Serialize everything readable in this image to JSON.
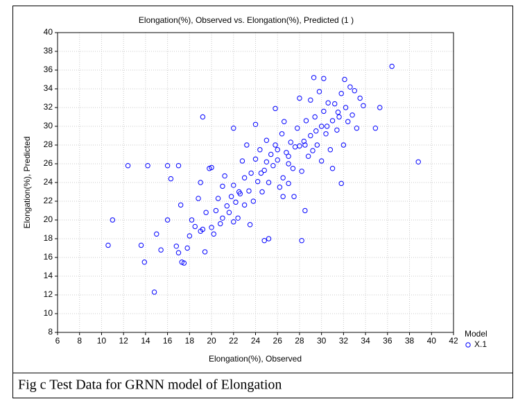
{
  "chart_data": {
    "type": "scatter",
    "title": "Elongation(%), Observed vs.  Elongation(%), Predicted (1 )",
    "xlabel": "Elongation(%), Observed",
    "ylabel": "Elongation(%), Predicted",
    "legend_title": "Model",
    "series": [
      {
        "name": "X.1",
        "color": "#0000ff",
        "x": [
          10.6,
          11.0,
          12.4,
          13.6,
          13.9,
          14.2,
          14.8,
          15.0,
          15.4,
          16.0,
          16.0,
          16.3,
          16.8,
          17.0,
          17.2,
          19.2,
          22.0,
          28.2,
          28.5,
          31.8,
          38.8,
          36.4,
          35.3,
          34.9,
          25.8,
          29.3,
          30.2,
          32.1,
          33.5,
          33.8,
          24.8,
          25.2,
          26.5,
          27.0,
          17.0,
          17.3,
          17.5,
          17.8,
          18.0,
          18.2,
          18.5,
          18.8,
          19.0,
          19.2,
          19.4,
          19.5,
          19.8,
          20.0,
          20.2,
          20.4,
          20.6,
          20.8,
          21.0,
          21.2,
          21.4,
          21.6,
          21.8,
          22.0,
          22.2,
          22.4,
          22.6,
          22.8,
          23.0,
          23.2,
          23.4,
          23.6,
          23.8,
          24.0,
          24.0,
          24.2,
          24.4,
          24.6,
          24.8,
          25.0,
          25.0,
          25.2,
          25.4,
          25.6,
          25.8,
          26.0,
          26.2,
          26.4,
          26.6,
          26.8,
          27.0,
          27.2,
          27.4,
          27.6,
          27.8,
          28.0,
          28.0,
          28.2,
          28.4,
          28.6,
          28.8,
          29.0,
          29.0,
          29.2,
          29.4,
          29.6,
          29.8,
          30.0,
          30.0,
          30.2,
          30.4,
          30.6,
          30.8,
          31.0,
          31.0,
          31.2,
          31.4,
          31.6,
          31.8,
          32.0,
          32.2,
          32.4,
          32.6,
          32.8,
          33.0,
          33.2,
          22.5,
          23.0,
          24.5,
          26.0,
          27.0,
          28.5,
          29.5,
          30.5,
          31.5,
          21.0,
          20.0,
          19.0,
          23.5,
          22.0,
          26.5,
          27.5
        ],
        "y": [
          17.3,
          20.0,
          25.8,
          17.3,
          15.5,
          25.8,
          12.3,
          18.5,
          16.8,
          25.8,
          20.0,
          24.4,
          17.2,
          25.8,
          21.6,
          31.0,
          29.8,
          17.8,
          21.0,
          23.9,
          26.2,
          36.4,
          32.0,
          29.8,
          31.9,
          35.2,
          35.1,
          35.0,
          33.0,
          32.2,
          17.8,
          18.0,
          22.5,
          23.9,
          16.5,
          15.5,
          15.4,
          17.0,
          18.3,
          20.0,
          19.3,
          22.3,
          24.0,
          19.0,
          16.6,
          20.8,
          25.5,
          25.6,
          18.5,
          21.0,
          22.3,
          19.6,
          23.6,
          24.7,
          21.5,
          20.8,
          22.5,
          23.7,
          21.9,
          20.2,
          22.8,
          26.3,
          21.6,
          28.0,
          23.1,
          25.0,
          22.0,
          30.2,
          26.5,
          24.1,
          27.5,
          23.0,
          25.3,
          28.5,
          26.2,
          24.0,
          27.0,
          25.8,
          28.0,
          26.4,
          23.5,
          29.2,
          30.5,
          27.2,
          26.0,
          28.3,
          25.5,
          27.8,
          29.8,
          33.0,
          27.9,
          25.2,
          28.4,
          30.6,
          26.8,
          32.8,
          29.0,
          27.4,
          31.0,
          28.0,
          33.7,
          30.0,
          26.3,
          31.6,
          29.2,
          32.5,
          27.5,
          30.6,
          25.5,
          32.4,
          29.6,
          31.0,
          33.5,
          28.0,
          32.0,
          30.5,
          34.2,
          31.2,
          33.8,
          29.8,
          23.0,
          24.5,
          25.0,
          27.5,
          26.8,
          28.0,
          29.5,
          30.0,
          31.5,
          20.2,
          19.2,
          18.8,
          19.5,
          19.8,
          24.5,
          22.5
        ]
      }
    ],
    "xlim": [
      6,
      42
    ],
    "ylim": [
      8,
      40
    ],
    "xticks": [
      6,
      8,
      10,
      12,
      14,
      16,
      18,
      20,
      22,
      24,
      26,
      28,
      30,
      32,
      34,
      36,
      38,
      40,
      42
    ],
    "yticks": [
      8,
      10,
      12,
      14,
      16,
      18,
      20,
      22,
      24,
      26,
      28,
      30,
      32,
      34,
      36,
      38,
      40
    ],
    "grid": true
  },
  "caption": "Fig c   Test Data for GRNN model of Elongation"
}
